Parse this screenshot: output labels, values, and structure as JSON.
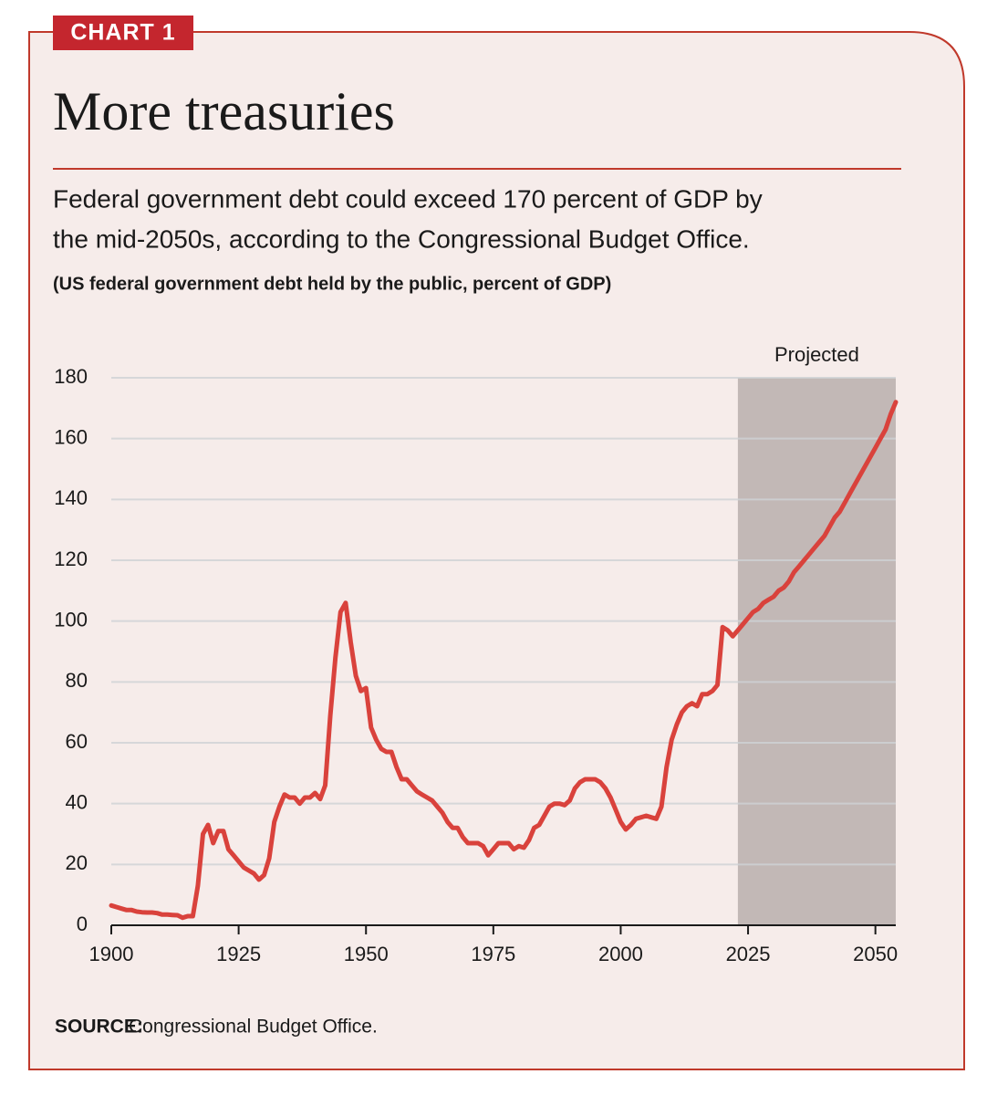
{
  "chart_label": "CHART 1",
  "chart_data": {
    "type": "line",
    "title": "More treasuries",
    "subtitle": "Federal government debt could exceed 170 percent of GDP by the mid-2050s, according to the Congressional Budget Office.",
    "subtitle_lines": [
      "Federal government debt could exceed 170 percent of GDP by",
      "the mid-2050s, according to the Congressional Budget Office."
    ],
    "y_label": "(US federal government debt held by the public, percent of GDP)",
    "annotation": "Projected",
    "projected_range": [
      2023,
      2054
    ],
    "color": "#d9423c",
    "grid": true,
    "xlim": [
      1900,
      2054
    ],
    "ylim": [
      0,
      180
    ],
    "xticks": [
      1900,
      1925,
      1950,
      1975,
      2000,
      2025,
      2050
    ],
    "yticks": [
      0,
      20,
      40,
      60,
      80,
      100,
      120,
      140,
      160,
      180
    ],
    "x": [
      1900,
      1901,
      1902,
      1903,
      1904,
      1905,
      1906,
      1907,
      1908,
      1909,
      1910,
      1911,
      1912,
      1913,
      1914,
      1915,
      1916,
      1917,
      1918,
      1919,
      1920,
      1921,
      1922,
      1923,
      1924,
      1925,
      1926,
      1927,
      1928,
      1929,
      1930,
      1931,
      1932,
      1933,
      1934,
      1935,
      1936,
      1937,
      1938,
      1939,
      1940,
      1941,
      1942,
      1943,
      1944,
      1945,
      1946,
      1947,
      1948,
      1949,
      1950,
      1951,
      1952,
      1953,
      1954,
      1955,
      1956,
      1957,
      1958,
      1959,
      1960,
      1961,
      1962,
      1963,
      1964,
      1965,
      1966,
      1967,
      1968,
      1969,
      1970,
      1971,
      1972,
      1973,
      1974,
      1975,
      1976,
      1977,
      1978,
      1979,
      1980,
      1981,
      1982,
      1983,
      1984,
      1985,
      1986,
      1987,
      1988,
      1989,
      1990,
      1991,
      1992,
      1993,
      1994,
      1995,
      1996,
      1997,
      1998,
      1999,
      2000,
      2001,
      2002,
      2003,
      2004,
      2005,
      2006,
      2007,
      2008,
      2009,
      2010,
      2011,
      2012,
      2013,
      2014,
      2015,
      2016,
      2017,
      2018,
      2019,
      2020,
      2021,
      2022,
      2023,
      2024,
      2025,
      2026,
      2027,
      2028,
      2029,
      2030,
      2031,
      2032,
      2033,
      2034,
      2035,
      2036,
      2037,
      2038,
      2039,
      2040,
      2041,
      2042,
      2043,
      2044,
      2045,
      2046,
      2047,
      2048,
      2049,
      2050,
      2051,
      2052,
      2053,
      2054
    ],
    "values": [
      6.5,
      6,
      5.5,
      5,
      5,
      4.5,
      4.3,
      4.2,
      4.2,
      4,
      3.5,
      3.5,
      3.4,
      3.3,
      2.5,
      3,
      3,
      13,
      30,
      33,
      27,
      31,
      31,
      25,
      23,
      21,
      19,
      18,
      17,
      15,
      16.5,
      22,
      34,
      39,
      43,
      42,
      42,
      40,
      42,
      42,
      43.5,
      41.5,
      46,
      69,
      88,
      103,
      106,
      93,
      82,
      77,
      78,
      65,
      61,
      58,
      57,
      57,
      52,
      48,
      48,
      46,
      44,
      43,
      42,
      41,
      39,
      37,
      34,
      32,
      32,
      29,
      27,
      27,
      27,
      26,
      23,
      25,
      27,
      27,
      27,
      25,
      26,
      25.5,
      28,
      32,
      33,
      36,
      39,
      40,
      40,
      39.5,
      41,
      45,
      47,
      48,
      48,
      48,
      47,
      45,
      42,
      38,
      34,
      31.5,
      33,
      35,
      35.5,
      36,
      35.5,
      35,
      39,
      52,
      61,
      66,
      70,
      72,
      73,
      72,
      76,
      76,
      77,
      79,
      98,
      97,
      95,
      97,
      99,
      101,
      103,
      104,
      106,
      107,
      108,
      110,
      111,
      113,
      116,
      118,
      120,
      122,
      124,
      126,
      128,
      131,
      134,
      136,
      139,
      142,
      145,
      148,
      151,
      154,
      157,
      160,
      163,
      168,
      172
    ]
  },
  "source_label": "SOURCE:",
  "source": "Congressional Budget Office."
}
